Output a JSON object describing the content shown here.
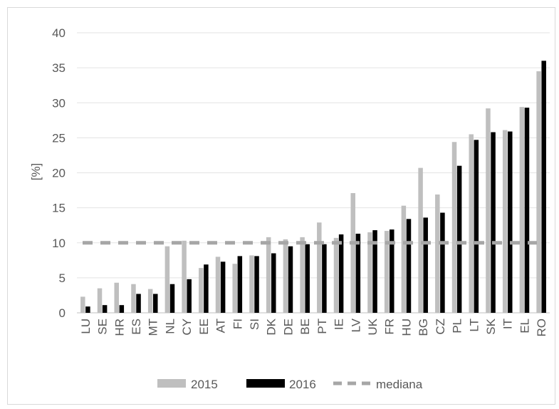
{
  "chart_data": {
    "type": "bar",
    "title": "",
    "xlabel": "",
    "ylabel": "[%]",
    "ylim": [
      0,
      40
    ],
    "yticks": [
      0,
      5,
      10,
      15,
      20,
      25,
      30,
      35,
      40
    ],
    "grid": true,
    "legend_position": "bottom",
    "categories": [
      "LU",
      "SE",
      "HR",
      "ES",
      "MT",
      "NL",
      "CY",
      "EE",
      "AT",
      "FI",
      "SI",
      "DK",
      "DE",
      "BE",
      "PT",
      "IE",
      "LV",
      "UK",
      "FR",
      "HU",
      "BG",
      "CZ",
      "PL",
      "LT",
      "SK",
      "IT",
      "EL",
      "RO"
    ],
    "series": [
      {
        "name": "2015",
        "color": "#bfbfbf",
        "values": [
          2.3,
          3.5,
          4.3,
          4.1,
          3.4,
          9.5,
          10.3,
          6.4,
          8.0,
          7.0,
          8.2,
          10.8,
          10.5,
          10.8,
          12.9,
          10.7,
          17.1,
          11.5,
          11.7,
          15.3,
          20.7,
          16.9,
          24.4,
          25.5,
          29.2,
          26.1,
          29.4,
          34.5
        ]
      },
      {
        "name": "2016",
        "color": "#000000",
        "values": [
          0.9,
          1.1,
          1.1,
          2.7,
          2.7,
          4.1,
          4.8,
          6.9,
          7.3,
          8.1,
          8.1,
          8.5,
          9.5,
          9.8,
          9.8,
          11.2,
          11.3,
          11.8,
          11.9,
          13.4,
          13.6,
          14.3,
          21.0,
          24.7,
          25.8,
          25.9,
          29.3,
          36.0
        ]
      }
    ],
    "median": {
      "name": "mediana",
      "value": 10,
      "color": "#a6a6a6"
    }
  }
}
